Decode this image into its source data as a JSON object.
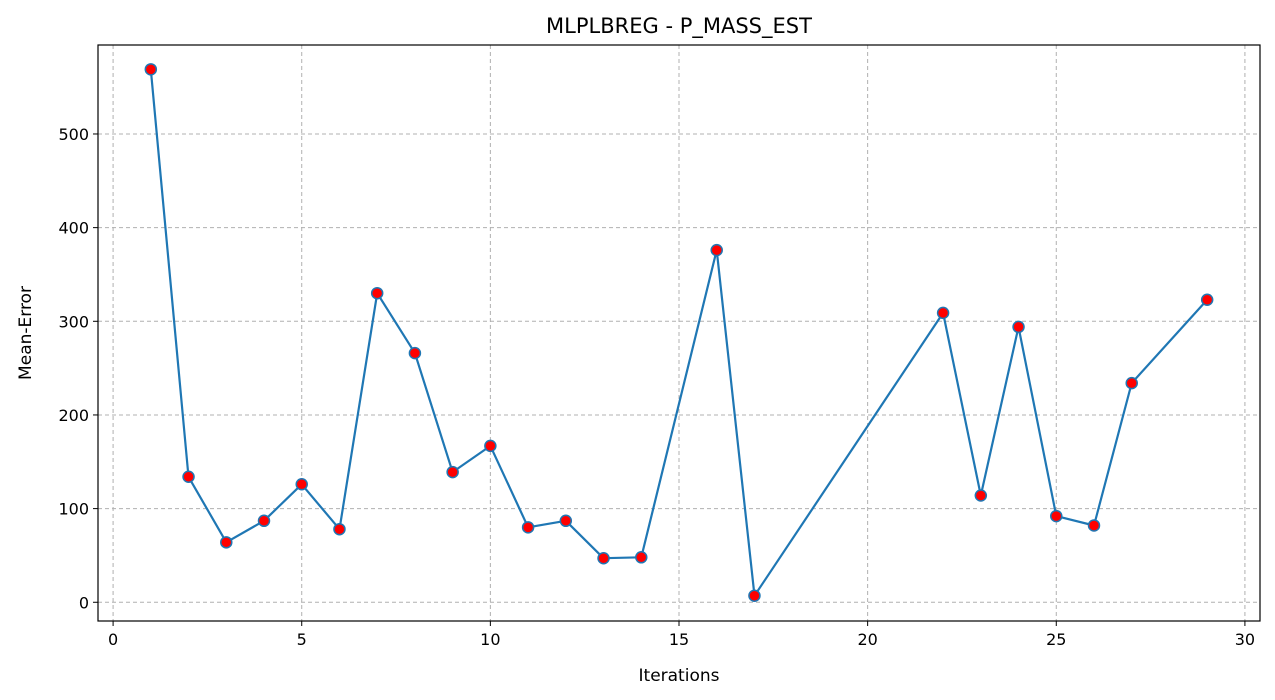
{
  "chart_data": {
    "type": "line",
    "title": "MLPLBREG - P_MASS_EST",
    "xlabel": "Iterations",
    "ylabel": "Mean-Error",
    "xlim": [
      -0.4,
      30.4
    ],
    "ylim": [
      -20,
      595
    ],
    "xticks": [
      0,
      5,
      10,
      15,
      20,
      25,
      30
    ],
    "yticks": [
      0,
      100,
      200,
      300,
      400,
      500
    ],
    "grid": true,
    "line_color": "#1f77b4",
    "marker_color": "#ff0000",
    "series": [
      {
        "x": [
          1,
          2,
          3,
          4,
          5,
          6,
          7,
          8,
          9,
          10,
          11,
          12,
          13,
          14,
          16,
          17,
          22,
          23,
          24,
          25,
          26,
          27,
          29
        ],
        "y": [
          569,
          134,
          64,
          87,
          126,
          78,
          330,
          266,
          139,
          167,
          80,
          87,
          47,
          48,
          376,
          7,
          309,
          114,
          294,
          92,
          82,
          234,
          323
        ]
      }
    ]
  }
}
